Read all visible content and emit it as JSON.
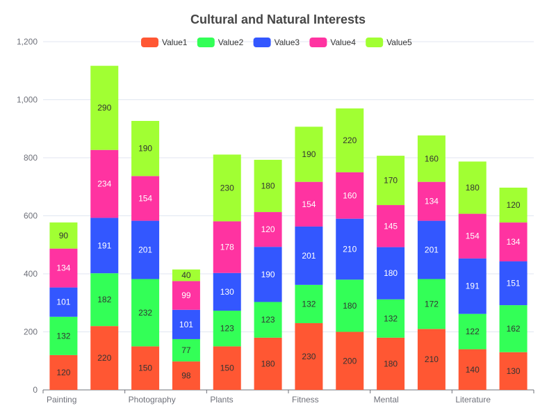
{
  "chart_data": {
    "type": "bar",
    "stacked": true,
    "title": "Cultural and Natural Interests",
    "categories": [
      "Painting",
      "",
      "Photography",
      "",
      "Plants",
      "",
      "Fitness",
      "",
      "Mental",
      "",
      "Literature",
      ""
    ],
    "series": [
      {
        "name": "Value1",
        "color": "#ff5733",
        "label_color": "#333333",
        "values": [
          120,
          220,
          150,
          98,
          150,
          180,
          230,
          200,
          180,
          210,
          140,
          130
        ]
      },
      {
        "name": "Value2",
        "color": "#33ff57",
        "label_color": "#333333",
        "values": [
          132,
          182,
          232,
          77,
          123,
          123,
          132,
          180,
          132,
          172,
          122,
          162
        ]
      },
      {
        "name": "Value3",
        "color": "#3357ff",
        "label_color": "#ffffff",
        "values": [
          101,
          191,
          201,
          101,
          130,
          190,
          201,
          210,
          180,
          201,
          191,
          151
        ]
      },
      {
        "name": "Value4",
        "color": "#ff33a1",
        "label_color": "#ffffff",
        "values": [
          134,
          234,
          154,
          99,
          178,
          120,
          154,
          160,
          145,
          134,
          154,
          134
        ]
      },
      {
        "name": "Value5",
        "color": "#a1ff33",
        "label_color": "#333333",
        "values": [
          90,
          290,
          190,
          40,
          230,
          180,
          190,
          220,
          170,
          160,
          180,
          120
        ]
      }
    ],
    "y_axis": {
      "min": 0,
      "max": 1200,
      "ticks": [
        "0",
        "200",
        "400",
        "600",
        "800",
        "1,000",
        "1,200"
      ]
    },
    "grid": true,
    "legend_position": "top-center"
  }
}
